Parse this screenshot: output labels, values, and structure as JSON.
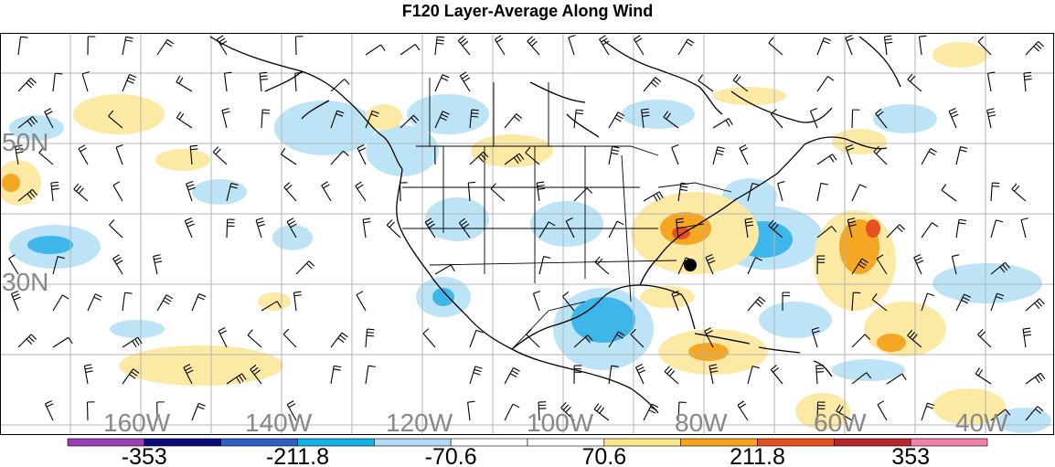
{
  "title": "F120 Layer-Average Along Wind",
  "lon_labels": [
    "160W",
    "140W",
    "120W",
    "100W",
    "80W",
    "60W",
    "40W"
  ],
  "lat_labels": [
    "50N",
    "30N"
  ],
  "colorbar": {
    "colors": [
      "#9b3fb5",
      "#0b0b7a",
      "#2f5ec4",
      "#12b1e6",
      "#b2dcf5",
      "#ffffff",
      "#ffffff",
      "#fde58a",
      "#f6a21a",
      "#e8501b",
      "#b8262a",
      "#f07fab"
    ],
    "labels": [
      "-353",
      "-211.8",
      "-70.6",
      "70.6",
      "211.8",
      "353"
    ]
  },
  "map_colors": {
    "positive_light": "#fbe9a4",
    "positive_mid": "#f5a623",
    "positive_strong": "#e6521f",
    "negative_light": "#bde3f7",
    "negative_mid": "#3fb6ea",
    "coast": "#000000",
    "grid": "#b4b4b4"
  },
  "marker": {
    "name": "station-dot",
    "lon_label": "80W",
    "lat_label": "30N"
  }
}
